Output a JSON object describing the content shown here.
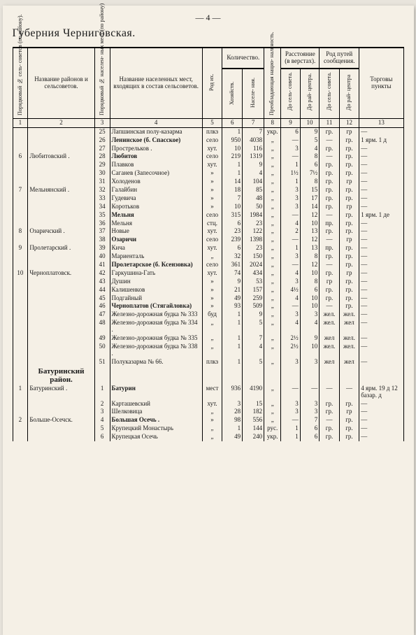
{
  "page_number": "— 4 —",
  "title": "Губерния Черниговская.",
  "headers": {
    "c1": "Порядковый № сель-\nсоветов (по району).",
    "c2": "Название районов и сельсоветов.",
    "c3": "Порядковый № населен-\nных мест (по району)",
    "c4": "Название населенных мест, входящих в состав сельсоветов.",
    "c5": "Род их.",
    "grp67": "Количество.",
    "c6": "Хозяйств.",
    "c7": "Населе-\nния.",
    "c8": "Преобладающая нацио-\nнальность.",
    "grp910": "Расстояние (в верстах).",
    "c9": "До сель-\nсовета.",
    "c10": "До рай-\nцентра.",
    "grp1112": "Род путей сообщения.",
    "c11": "До сель-\nсовета.",
    "c12": "До рай-\nцентра",
    "c13": "Торговы\nпункты",
    "nums": [
      "1",
      "2",
      "3",
      "4",
      "5",
      "6",
      "7",
      "8",
      "9",
      "10",
      "11",
      "12",
      "13"
    ]
  },
  "section2": "Батуринский район.",
  "rows": [
    {
      "c1": "",
      "c2": "",
      "c3": "25",
      "c4": "Лапшинская полу-казарма",
      "c5": "плкз",
      "c6": "1",
      "c7": "7",
      "c8": "укр.",
      "c9": "6",
      "c10": "9",
      "c11": "гр.",
      "c12": "гр",
      "c13": "—"
    },
    {
      "c1": "",
      "c2": "",
      "c3": "26",
      "c4": "Ленинское (б. Спасское)",
      "bold4": true,
      "c5": "село",
      "c6": "950",
      "c7": "4038",
      "c8": "„",
      "c9": "—",
      "c10": "5",
      "c11": "—",
      "c12": "гр.",
      "c13": "1 ярм. 1 д"
    },
    {
      "c1": "",
      "c2": "",
      "c3": "27",
      "c4": "Прострельков .",
      "c5": "хут.",
      "c6": "10",
      "c7": "116",
      "c8": "„",
      "c9": "3",
      "c10": "4",
      "c11": "гр.",
      "c12": "гр.",
      "c13": "—"
    },
    {
      "c1": "6",
      "c2": "Любитовский .",
      "c3": "28",
      "c4": "Любитов",
      "bold4": true,
      "c5": "село",
      "c6": "219",
      "c7": "1319",
      "c8": "„",
      "c9": "—",
      "c10": "8",
      "c11": "—",
      "c12": "гр.",
      "c13": "—"
    },
    {
      "c1": "",
      "c2": "",
      "c3": "29",
      "c4": "Плавков",
      "c5": "хут.",
      "c6": "1",
      "c7": "9",
      "c8": "„",
      "c9": "1",
      "c10": "6",
      "c11": "гр.",
      "c12": "гр.",
      "c13": "—"
    },
    {
      "c1": "",
      "c2": "",
      "c3": "30",
      "c4": "Саганев (Запесочное)",
      "c5": "»",
      "c6": "1",
      "c7": "4",
      "c8": "„",
      "c9": "1½",
      "c10": "7½",
      "c11": "гр.",
      "c12": "гр.",
      "c13": "—"
    },
    {
      "c1": "",
      "c2": "",
      "c3": "31",
      "c4": "Холоденов",
      "c5": "»",
      "c6": "14",
      "c7": "104",
      "c8": "„",
      "c9": "1",
      "c10": "8",
      "c11": "гр.",
      "c12": "гр",
      "c13": "—"
    },
    {
      "c1": "7",
      "c2": "Мельнянский .",
      "c3": "32",
      "c4": "Галайбин",
      "c5": "»",
      "c6": "18",
      "c7": "85",
      "c8": "„",
      "c9": "3",
      "c10": "15",
      "c11": "гр.",
      "c12": "гр.",
      "c13": "—"
    },
    {
      "c1": "",
      "c2": "",
      "c3": "33",
      "c4": "Гудевича",
      "c5": "»",
      "c6": "7",
      "c7": "48",
      "c8": "„",
      "c9": "3",
      "c10": "17",
      "c11": "гр.",
      "c12": "гр.",
      "c13": "—"
    },
    {
      "c1": "",
      "c2": "",
      "c3": "34",
      "c4": "Коротьков",
      "c5": "»",
      "c6": "10",
      "c7": "50",
      "c8": "„",
      "c9": "3",
      "c10": "14",
      "c11": "гр.",
      "c12": "гр",
      "c13": "—"
    },
    {
      "c1": "",
      "c2": "",
      "c3": "35",
      "c4": "Мельня",
      "bold4": true,
      "c5": "село",
      "c6": "315",
      "c7": "1984",
      "c8": "„",
      "c9": "—",
      "c10": "12",
      "c11": "—",
      "c12": "гр.",
      "c13": "1 ярм. 1 де"
    },
    {
      "c1": "",
      "c2": "",
      "c3": "36",
      "c4": "Мельня",
      "c5": "стц.",
      "c6": "6",
      "c7": "23",
      "c8": "„",
      "c9": "4",
      "c10": "10",
      "c11": "пр.",
      "c12": "гр.",
      "c13": "—"
    },
    {
      "c1": "8",
      "c2": "Озаричский .",
      "c3": "37",
      "c4": "Новые",
      "c5": "хут.",
      "c6": "23",
      "c7": "122",
      "c8": "„",
      "c9": "2",
      "c10": "13",
      "c11": "гр.",
      "c12": "гр.",
      "c13": "—"
    },
    {
      "c1": "",
      "c2": "",
      "c3": "38",
      "c4": "Озаричи",
      "bold4": true,
      "c5": "село",
      "c6": "239",
      "c7": "1398",
      "c8": "„",
      "c9": "—",
      "c10": "12",
      "c11": "—",
      "c12": "гр",
      "c13": "—"
    },
    {
      "c1": "9",
      "c2": "Пролетарский .",
      "c3": "39",
      "c4": "Кича",
      "c5": "хут.",
      "c6": "6",
      "c7": "23",
      "c8": "„",
      "c9": "1",
      "c10": "13",
      "c11": "пр.",
      "c12": "гр.",
      "c13": "—"
    },
    {
      "c1": "",
      "c2": "",
      "c3": "40",
      "c4": "Мариенталь",
      "c5": "„",
      "c6": "32",
      "c7": "150",
      "c8": "„",
      "c9": "3",
      "c10": "8",
      "c11": "гр.",
      "c12": "гр.",
      "c13": "—"
    },
    {
      "c1": "",
      "c2": "",
      "c3": "41",
      "c4": "Пролетарское (б. Ксензовка)",
      "bold4": true,
      "c5": "село",
      "c6": "361",
      "c7": "2024",
      "c8": "„",
      "c9": "—",
      "c10": "12",
      "c11": "—",
      "c12": "гр.",
      "c13": "—"
    },
    {
      "c1": "10",
      "c2": "Черноплатовск.",
      "c3": "42",
      "c4": "Гаркушина-Гать",
      "c5": "хут.",
      "c6": "74",
      "c7": "434",
      "c8": "„",
      "c9": "4",
      "c10": "10",
      "c11": "гр.",
      "c12": "гр",
      "c13": "—"
    },
    {
      "c1": "",
      "c2": "",
      "c3": "43",
      "c4": "Душин",
      "c5": "»",
      "c6": "9",
      "c7": "53",
      "c8": "„",
      "c9": "3",
      "c10": "8",
      "c11": "гр",
      "c12": "гр.",
      "c13": "—"
    },
    {
      "c1": "",
      "c2": "",
      "c3": "44",
      "c4": "Калишенков",
      "c5": "»",
      "c6": "21",
      "c7": "157",
      "c8": "„",
      "c9": "4½",
      "c10": "6",
      "c11": "гр.",
      "c12": "гр.",
      "c13": "—"
    },
    {
      "c1": "",
      "c2": "",
      "c3": "45",
      "c4": "Подгайный",
      "c5": "»",
      "c6": "49",
      "c7": "259",
      "c8": "„",
      "c9": "4",
      "c10": "10",
      "c11": "гр.",
      "c12": "гр.",
      "c13": "—"
    },
    {
      "c1": "",
      "c2": "",
      "c3": "46",
      "c4": "Черноплатов (Стягайловка)",
      "bold4": true,
      "c5": "»",
      "c6": "93",
      "c7": "509",
      "c8": "„",
      "c9": "—",
      "c10": "10",
      "c11": "—",
      "c12": "гр.",
      "c13": "—"
    },
    {
      "c1": "",
      "c2": "",
      "c3": "47",
      "c4": "Железно-дорожная будка № 333",
      "c5": "буд",
      "c6": "1",
      "c7": "9",
      "c8": "„",
      "c9": "3",
      "c10": "3",
      "c11": "жел.",
      "c12": "жел.",
      "c13": "—"
    },
    {
      "c1": "",
      "c2": "",
      "c3": "48",
      "c4": "Железно-дорожная будка № 334 .",
      "c5": "„",
      "c6": "1",
      "c7": "5",
      "c8": "„",
      "c9": "4",
      "c10": "4",
      "c11": "жел.",
      "c12": "жел",
      "c13": "—"
    },
    {
      "c1": "",
      "c2": "",
      "c3": "49",
      "c4": "Железно-дорожная будка № 335",
      "c5": "„",
      "c6": "1",
      "c7": "7",
      "c8": "„",
      "c9": "2½",
      "c10": "9",
      "c11": "жел",
      "c12": "жел.",
      "c13": "—"
    },
    {
      "c1": "",
      "c2": "",
      "c3": "50",
      "c4": "Железно-дорожная будка № 338 .",
      "c5": "„",
      "c6": "1",
      "c7": "4",
      "c8": "„",
      "c9": "2½",
      "c10": "10",
      "c11": "жел.",
      "c12": "жел.",
      "c13": "—"
    },
    {
      "c1": "",
      "c2": "",
      "c3": "51",
      "c4": "Полуказарма № 66.",
      "c5": "плкз",
      "c6": "1",
      "c7": "5",
      "c8": "„",
      "c9": "3",
      "c10": "3",
      "c11": "жел",
      "c12": "жел",
      "c13": "—"
    }
  ],
  "rows2": [
    {
      "c1": "1",
      "c2": "Батуринский .",
      "c3": "1",
      "c4": "Батурин",
      "bold4": true,
      "c5": "мест",
      "c6": "936",
      "c7": "4190",
      "c8": "„",
      "c9": "—",
      "c10": "—",
      "c11": "—",
      "c12": "—",
      "c13": "4 ярм. 19 д 12 базар. д"
    },
    {
      "c1": "",
      "c2": "",
      "c3": "2",
      "c4": "Карташевский",
      "c5": "хут.",
      "c6": "3",
      "c7": "15",
      "c8": "„",
      "c9": "3",
      "c10": "3",
      "c11": "гр.",
      "c12": "гр.",
      "c13": "—"
    },
    {
      "c1": "",
      "c2": "",
      "c3": "3",
      "c4": "Шелковица",
      "c5": "„",
      "c6": "28",
      "c7": "182",
      "c8": "„",
      "c9": "3",
      "c10": "3",
      "c11": "гр.",
      "c12": "гр",
      "c13": "—"
    },
    {
      "c1": "2",
      "c2": "Больше-Осечск.",
      "c3": "4",
      "c4": "Большая Осечь .",
      "bold4": true,
      "c5": "»",
      "c6": "98",
      "c7": "556",
      "c8": "„",
      "c9": "—",
      "c10": "7",
      "c11": "—",
      "c12": "гр.",
      "c13": "—"
    },
    {
      "c1": "",
      "c2": "",
      "c3": "5",
      "c4": "Крупецкий Монастырь",
      "c5": "„",
      "c6": "1",
      "c7": "144",
      "c8": "рус.",
      "c9": "1",
      "c10": "6",
      "c11": "гр.",
      "c12": "гр.",
      "c13": "—"
    },
    {
      "c1": "",
      "c2": "",
      "c3": "6",
      "c4": "Крупецкая Осечь",
      "c5": "„",
      "c6": "49",
      "c7": "240",
      "c8": "укр.",
      "c9": "1",
      "c10": "6",
      "c11": "гр.",
      "c12": "гр.",
      "c13": "—"
    }
  ]
}
